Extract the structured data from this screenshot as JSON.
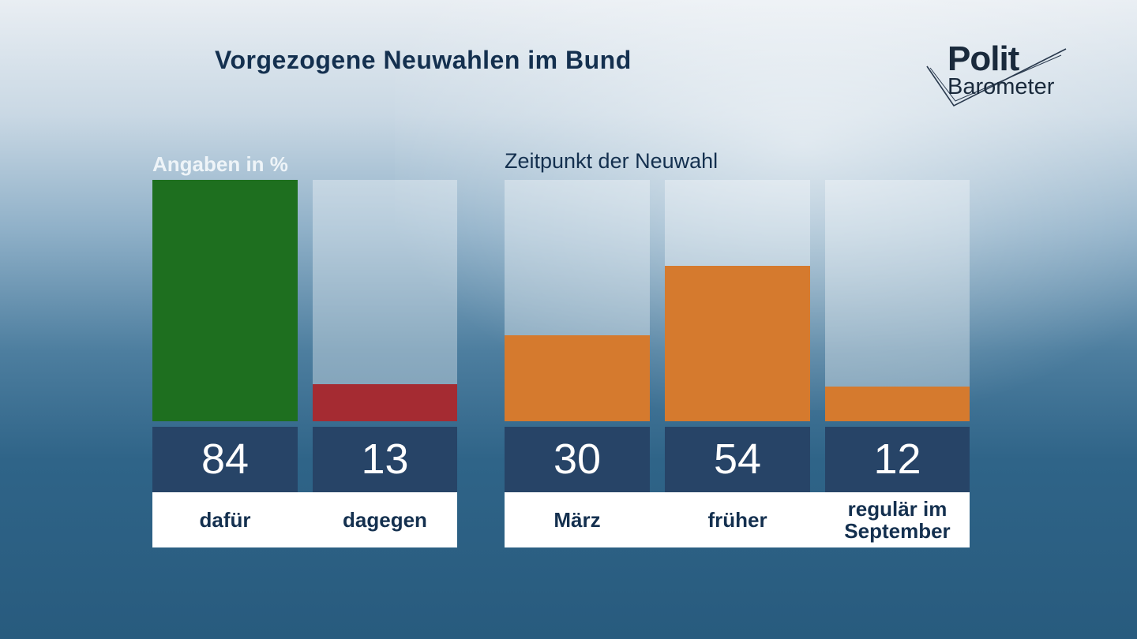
{
  "header": {
    "title": "Vorgezogene Neuwahlen im Bund",
    "logo_top": "Polit",
    "logo_bottom": "Barometer"
  },
  "chart_data": [
    {
      "type": "bar",
      "title": "",
      "ylabel": "Angaben in %",
      "categories": [
        "dafür",
        "dagegen"
      ],
      "values": [
        84,
        13
      ],
      "display_values": [
        "84",
        "13"
      ],
      "colors": [
        "#1e6f1f",
        "#a52b32"
      ],
      "ylim": [
        0,
        84
      ]
    },
    {
      "type": "bar",
      "title": "Zeitpunkt der Neuwahl",
      "categories": [
        "März",
        "früher",
        "regulär im September"
      ],
      "values": [
        30,
        54,
        12
      ],
      "display_values": [
        "30",
        "54",
        "12"
      ],
      "colors": [
        "#d57a2e",
        "#d57a2e",
        "#d57a2e"
      ],
      "ylim": [
        0,
        84
      ]
    }
  ],
  "colors": {
    "title": "#14304f",
    "value_box": "#274467",
    "category_box": "#ffffff"
  }
}
